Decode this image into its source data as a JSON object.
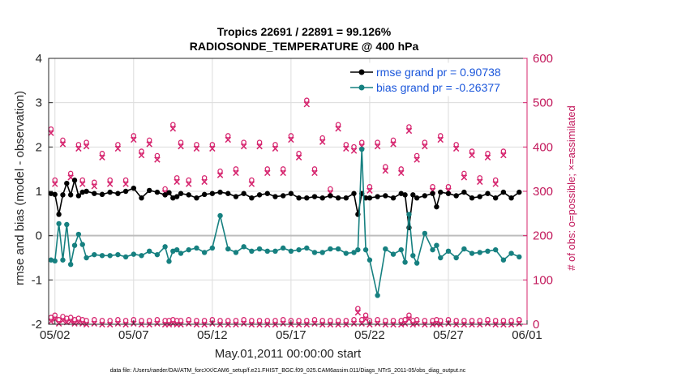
{
  "chart_data": {
    "type": "line",
    "title_line1": "Tropics 22691 / 22891 = 99.126%",
    "title_line2": "RADIOSONDE_TEMPERATURE @ 400 hPa",
    "ylabel_left": "rmse and bias (model - observation)",
    "ylabel_right": "# of obs: o=possible; ×=assimilated",
    "xlabel": "May.01,2011 00:00:00 start",
    "footnote": "data file: /Users/raeder/DAI/ATM_forcXX/CAM6_setup/f.e21.FHIST_BGC.f09_025.CAM6assim.011/Diags_NTrS_2011-05/obs_diag_output.nc",
    "xlim": [
      1.6,
      32.0
    ],
    "ylim_left": [
      -2,
      4
    ],
    "ylim_right": [
      0,
      600
    ],
    "left_ticks": [
      "-2",
      "-1",
      "0",
      "1",
      "2",
      "3",
      "4"
    ],
    "right_ticks": [
      "0",
      "100",
      "200",
      "300",
      "400",
      "500",
      "600"
    ],
    "x_tick_values": [
      2,
      7,
      12,
      17,
      22,
      27,
      32
    ],
    "x_tick_labels": [
      "05/02",
      "05/07",
      "05/12",
      "05/17",
      "05/22",
      "05/27",
      "06/01"
    ],
    "colors": {
      "rmse": "#000000",
      "bias": "#168080",
      "obs": "#d6246e",
      "legend_text": "#1a56db",
      "grid": "#dcdcdc",
      "zero_line": "#bdbdbd"
    },
    "legend": [
      {
        "key": "rmse",
        "label": "rmse grand pr = 0.90738"
      },
      {
        "key": "bias",
        "label": "bias grand pr = -0.26377"
      }
    ],
    "x": [
      1.75,
      2.0,
      2.25,
      2.5,
      2.75,
      3.0,
      3.25,
      3.5,
      3.75,
      4.0,
      4.5,
      5.0,
      5.5,
      6.0,
      6.5,
      7.0,
      7.5,
      8.0,
      8.5,
      9.0,
      9.25,
      9.5,
      9.75,
      10.0,
      10.5,
      11.0,
      11.5,
      12.0,
      12.5,
      13.0,
      13.5,
      14.0,
      14.5,
      15.0,
      15.5,
      16.0,
      16.5,
      17.0,
      17.5,
      18.0,
      18.5,
      19.0,
      19.5,
      20.0,
      20.5,
      21.0,
      21.25,
      21.5,
      21.75,
      22.0,
      22.5,
      23.0,
      23.5,
      24.0,
      24.25,
      24.5,
      24.75,
      25.0,
      25.5,
      26.0,
      26.25,
      26.5,
      27.0,
      27.5,
      28.0,
      28.5,
      29.0,
      29.5,
      30.0,
      30.5,
      31.0,
      31.5
    ],
    "series": [
      {
        "name": "rmse",
        "values": [
          0.95,
          0.93,
          0.48,
          0.92,
          1.18,
          0.92,
          1.25,
          0.9,
          0.98,
          1.0,
          0.95,
          0.93,
          0.98,
          0.95,
          1.0,
          1.07,
          0.85,
          1.02,
          0.98,
          0.92,
          0.97,
          0.85,
          0.88,
          0.95,
          0.92,
          0.85,
          0.93,
          0.95,
          0.98,
          0.95,
          0.88,
          0.95,
          0.85,
          0.92,
          0.95,
          0.88,
          0.9,
          0.95,
          0.85,
          0.85,
          0.88,
          0.85,
          0.9,
          0.85,
          0.85,
          0.95,
          0.48,
          0.95,
          0.85,
          0.85,
          0.88,
          0.9,
          0.85,
          0.95,
          0.92,
          0.18,
          0.92,
          0.85,
          0.9,
          0.95,
          0.65,
          0.98,
          0.95,
          0.9,
          0.98,
          0.85,
          0.88,
          0.95,
          0.85,
          0.98,
          0.85,
          0.98
        ]
      },
      {
        "name": "bias",
        "values": [
          -0.55,
          -0.57,
          0.27,
          -0.55,
          0.25,
          -0.65,
          -0.22,
          0.03,
          -0.2,
          -0.5,
          -0.43,
          -0.45,
          -0.45,
          -0.43,
          -0.48,
          -0.42,
          -0.45,
          -0.35,
          -0.43,
          -0.25,
          -0.58,
          -0.35,
          -0.32,
          -0.4,
          -0.32,
          -0.28,
          -0.38,
          -0.28,
          0.45,
          -0.3,
          -0.38,
          -0.25,
          -0.35,
          -0.3,
          -0.35,
          -0.35,
          -0.28,
          -0.35,
          -0.32,
          -0.28,
          -0.38,
          -0.38,
          -0.3,
          -0.3,
          -0.4,
          -0.38,
          -0.32,
          1.95,
          -0.32,
          -0.55,
          -1.35,
          -0.3,
          -0.42,
          -0.32,
          -0.6,
          0.48,
          -0.45,
          -0.62,
          0.05,
          -0.32,
          -0.22,
          -0.5,
          -0.35,
          -0.5,
          -0.3,
          -0.4,
          -0.38,
          -0.35,
          -0.32,
          -0.55,
          -0.4,
          -0.48
        ]
      },
      {
        "name": "obs_possible",
        "values": [
          10,
          15,
          5,
          12,
          8,
          10,
          5,
          8,
          5,
          3,
          5,
          3,
          3,
          5,
          3,
          5,
          3,
          3,
          5,
          3,
          3,
          5,
          3,
          3,
          5,
          3,
          3,
          5,
          3,
          3,
          3,
          5,
          3,
          3,
          3,
          3,
          5,
          3,
          3,
          3,
          5,
          3,
          3,
          3,
          3,
          5,
          30,
          5,
          15,
          3,
          5,
          3,
          3,
          3,
          5,
          15,
          3,
          5,
          3,
          3,
          5,
          3,
          5,
          3,
          3,
          3,
          3,
          5,
          3,
          3,
          3,
          5
        ]
      }
    ],
    "obs_possible_upper": [
      {
        "x": 1.75,
        "v": 435
      },
      {
        "x": 2.0,
        "v": 320
      },
      {
        "x": 2.5,
        "v": 410
      },
      {
        "x": 3.0,
        "v": 335
      },
      {
        "x": 3.5,
        "v": 400
      },
      {
        "x": 3.75,
        "v": 320
      },
      {
        "x": 4.0,
        "v": 405
      },
      {
        "x": 4.5,
        "v": 315
      },
      {
        "x": 5.0,
        "v": 380
      },
      {
        "x": 5.5,
        "v": 320
      },
      {
        "x": 6.0,
        "v": 400
      },
      {
        "x": 6.5,
        "v": 320
      },
      {
        "x": 7.0,
        "v": 420
      },
      {
        "x": 7.5,
        "v": 385
      },
      {
        "x": 8.0,
        "v": 410
      },
      {
        "x": 8.5,
        "v": 375
      },
      {
        "x": 9.0,
        "v": 300
      },
      {
        "x": 9.5,
        "v": 445
      },
      {
        "x": 9.75,
        "v": 325
      },
      {
        "x": 10.0,
        "v": 405
      },
      {
        "x": 10.5,
        "v": 320
      },
      {
        "x": 11.0,
        "v": 400
      },
      {
        "x": 11.5,
        "v": 325
      },
      {
        "x": 12.0,
        "v": 400
      },
      {
        "x": 12.5,
        "v": 340
      },
      {
        "x": 13.0,
        "v": 420
      },
      {
        "x": 13.5,
        "v": 345
      },
      {
        "x": 14.0,
        "v": 405
      },
      {
        "x": 14.5,
        "v": 320
      },
      {
        "x": 15.0,
        "v": 405
      },
      {
        "x": 15.5,
        "v": 345
      },
      {
        "x": 16.0,
        "v": 400
      },
      {
        "x": 16.5,
        "v": 345
      },
      {
        "x": 17.0,
        "v": 420
      },
      {
        "x": 17.5,
        "v": 380
      },
      {
        "x": 18.0,
        "v": 500
      },
      {
        "x": 18.5,
        "v": 345
      },
      {
        "x": 19.0,
        "v": 415
      },
      {
        "x": 19.5,
        "v": 300
      },
      {
        "x": 20.0,
        "v": 445
      },
      {
        "x": 20.5,
        "v": 400
      },
      {
        "x": 21.0,
        "v": 395
      },
      {
        "x": 21.5,
        "v": 405
      },
      {
        "x": 22.0,
        "v": 305
      },
      {
        "x": 22.5,
        "v": 405
      },
      {
        "x": 23.0,
        "v": 350
      },
      {
        "x": 23.5,
        "v": 410
      },
      {
        "x": 24.0,
        "v": 345
      },
      {
        "x": 24.5,
        "v": 440
      },
      {
        "x": 25.0,
        "v": 375
      },
      {
        "x": 25.5,
        "v": 405
      },
      {
        "x": 26.0,
        "v": 305
      },
      {
        "x": 26.5,
        "v": 420
      },
      {
        "x": 27.0,
        "v": 305
      },
      {
        "x": 27.5,
        "v": 400
      },
      {
        "x": 28.0,
        "v": 335
      },
      {
        "x": 28.5,
        "v": 385
      },
      {
        "x": 29.0,
        "v": 325
      },
      {
        "x": 29.5,
        "v": 380
      },
      {
        "x": 30.0,
        "v": 320
      },
      {
        "x": 30.5,
        "v": 385
      }
    ]
  }
}
